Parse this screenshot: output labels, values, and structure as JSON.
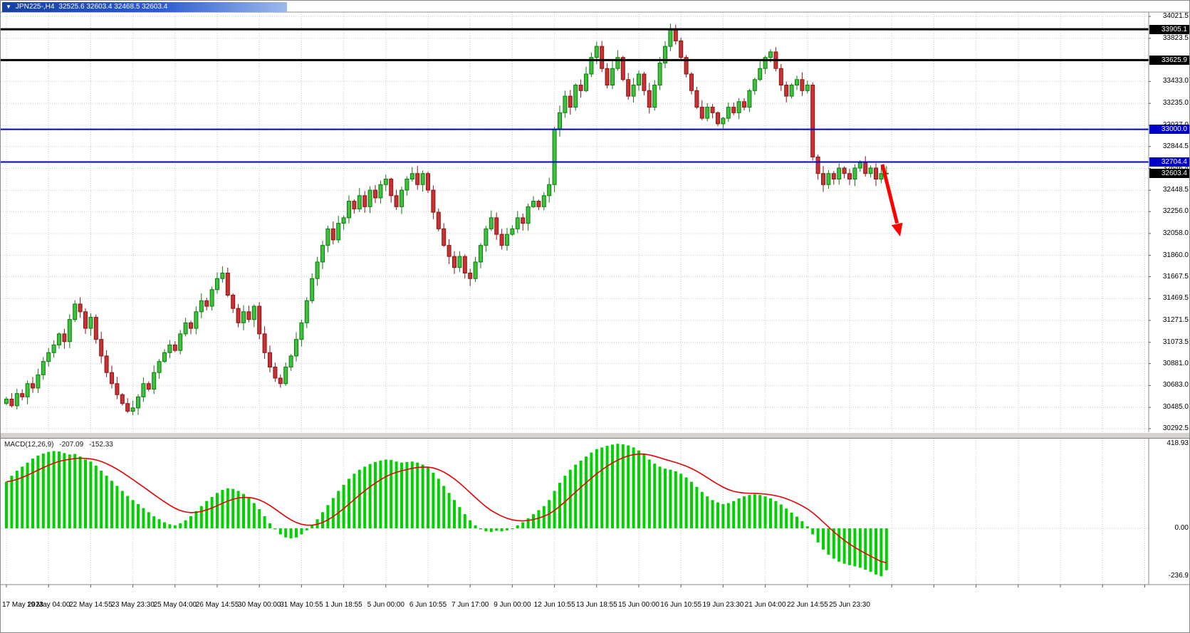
{
  "window": {
    "symbol_period": "JPN225-,H4",
    "quote_line": "32525.6 32603.4 32468.5 32603.4"
  },
  "chart_data": {
    "type": "candlestick",
    "symbol": "JPN225-",
    "timeframe": "H4",
    "quote": {
      "open": 32525.6,
      "high": 32603.4,
      "low": 32468.5,
      "close": 32603.4
    },
    "price_axis": {
      "ticks": [
        "34021.5",
        "33823.5",
        "33625.4",
        "33433.0",
        "33235.0",
        "33037.0",
        "32844.5",
        "32646.4",
        "32448.5",
        "32256.0",
        "32058.0",
        "31860.0",
        "31667.5",
        "31469.5",
        "31271.5",
        "31073.5",
        "30881.0",
        "30683.0",
        "30485.0",
        "30292.5"
      ],
      "badges": [
        {
          "label": "33905.1",
          "value": 33905.1,
          "type": "black"
        },
        {
          "label": "33625.9",
          "value": 33625.9,
          "type": "black"
        },
        {
          "label": "33000.0",
          "value": 33000.0,
          "type": "blue"
        },
        {
          "label": "32704.4",
          "value": 32704.4,
          "type": "blue"
        },
        {
          "label": "32603.4",
          "value": 32603.4,
          "type": "black"
        }
      ]
    },
    "time_labels": [
      "17 May 2023",
      "19 May 04:00",
      "22 May 14:55",
      "23 May 23:30",
      "25 May 04:00",
      "26 May 14:55",
      "30 May 00:00",
      "31 May 10:55",
      "1 Jun 18:55",
      "5 Jun 00:00",
      "6 Jun 10:55",
      "7 Jun 17:00",
      "9 Jun 00:00",
      "12 Jun 10:55",
      "13 Jun 18:55",
      "15 Jun 00:00",
      "16 Jun 10:55",
      "19 Jun 23:30",
      "21 Jun 04:00",
      "22 Jun 14:55",
      "25 Jun 23:30"
    ],
    "hlines": [
      {
        "value": 33905.1,
        "color": "#000000",
        "width": 3
      },
      {
        "value": 33625.9,
        "color": "#000000",
        "width": 3
      },
      {
        "value": 33000.0,
        "color": "#0000C8",
        "width": 2
      },
      {
        "value": 32704.4,
        "color": "#0000C8",
        "width": 2
      }
    ],
    "annotation": {
      "type": "arrow",
      "direction": "down-right",
      "color": "#FF0000"
    },
    "first_open": 30520,
    "closes": [
      30560,
      30500,
      30610,
      30580,
      30700,
      30660,
      30780,
      30900,
      30980,
      31050,
      31150,
      31080,
      31280,
      31420,
      31350,
      31200,
      31300,
      31100,
      30950,
      30800,
      30700,
      30600,
      30520,
      30450,
      30480,
      30580,
      30700,
      30650,
      30800,
      30900,
      30980,
      31050,
      31000,
      31150,
      31250,
      31200,
      31350,
      31450,
      31400,
      31550,
      31650,
      31700,
      31500,
      31380,
      31250,
      31350,
      31280,
      31400,
      31150,
      30980,
      30850,
      30750,
      30700,
      30850,
      30950,
      31100,
      31250,
      31450,
      31650,
      31800,
      31950,
      32100,
      32000,
      32150,
      32200,
      32350,
      32280,
      32400,
      32300,
      32450,
      32380,
      32500,
      32550,
      32400,
      32300,
      32450,
      32550,
      32600,
      32500,
      32600,
      32450,
      32250,
      32100,
      31950,
      31850,
      31750,
      31850,
      31700,
      31650,
      31800,
      31950,
      32100,
      32200,
      32050,
      31950,
      32050,
      32100,
      32200,
      32150,
      32300,
      32350,
      32300,
      32400,
      32500,
      33000,
      33150,
      33300,
      33200,
      33400,
      33350,
      33500,
      33650,
      33750,
      33550,
      33400,
      33550,
      33650,
      33450,
      33300,
      33400,
      33500,
      33350,
      33200,
      33400,
      33600,
      33750,
      33900,
      33800,
      33650,
      33500,
      33350,
      33200,
      33100,
      33200,
      33150,
      33050,
      33100,
      33200,
      33150,
      33250,
      33200,
      33350,
      33450,
      33550,
      33650,
      33700,
      33550,
      33400,
      33300,
      33400,
      33450,
      33350,
      33400,
      32750,
      32600,
      32500,
      32600,
      32550,
      32650,
      32600,
      32550,
      32650,
      32700,
      32600,
      32650,
      32550,
      32600,
      32603
    ],
    "colors": {
      "up": "#3CC23C",
      "up_stroke": "#0E7A0E",
      "down": "#C83232",
      "down_stroke": "#8B1414"
    }
  },
  "macd": {
    "label": "MACD(12,26,9)",
    "value_main": "-207.09",
    "value_signal": "-152.33",
    "axis_ticks": [
      "418.93",
      "0.00",
      "-236.9"
    ],
    "colors": {
      "histogram": "#00D200",
      "signal": "#E80000"
    },
    "histogram": [
      230,
      260,
      285,
      305,
      325,
      345,
      360,
      370,
      378,
      382,
      380,
      372,
      365,
      368,
      355,
      340,
      330,
      310,
      285,
      260,
      235,
      210,
      185,
      160,
      140,
      120,
      100,
      80,
      60,
      45,
      30,
      20,
      15,
      25,
      40,
      60,
      85,
      110,
      135,
      155,
      175,
      190,
      198,
      195,
      185,
      170,
      150,
      125,
      95,
      60,
      25,
      -5,
      -30,
      -45,
      -50,
      -45,
      -30,
      -10,
      15,
      45,
      80,
      115,
      150,
      185,
      215,
      245,
      270,
      290,
      305,
      318,
      328,
      335,
      340,
      338,
      330,
      325,
      328,
      330,
      325,
      315,
      300,
      275,
      245,
      210,
      175,
      140,
      105,
      70,
      40,
      15,
      -5,
      -15,
      -18,
      -12,
      -15,
      -10,
      0,
      15,
      30,
      50,
      70,
      90,
      110,
      140,
      185,
      225,
      260,
      290,
      315,
      335,
      355,
      375,
      392,
      400,
      408,
      414,
      418,
      415,
      410,
      400,
      385,
      365,
      340,
      320,
      305,
      295,
      290,
      282,
      270,
      252,
      230,
      205,
      180,
      158,
      140,
      128,
      120,
      125,
      135,
      148,
      158,
      165,
      168,
      165,
      158,
      148,
      135,
      118,
      98,
      78,
      58,
      35,
      10,
      -30,
      -70,
      -105,
      -130,
      -150,
      -165,
      -175,
      -182,
      -188,
      -195,
      -205,
      -215,
      -228,
      -237,
      -207
    ]
  }
}
